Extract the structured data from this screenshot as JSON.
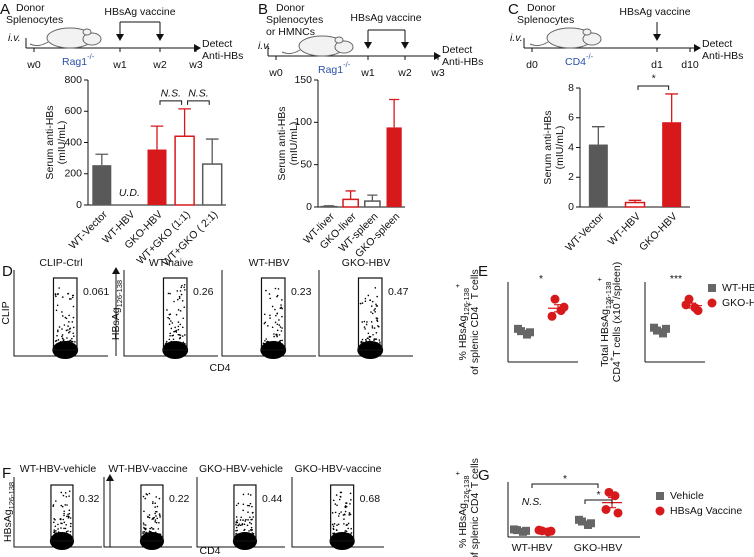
{
  "panel_labels": [
    "A",
    "B",
    "C",
    "D",
    "E",
    "F",
    "G"
  ],
  "schematics": [
    {
      "donor": [
        "Donor",
        "Splenocytes"
      ],
      "route": "i.v.",
      "host": [
        {
          "t": "Rag1"
        },
        {
          "sup": "-/-"
        }
      ],
      "vaccine": "HBsAg vaccine",
      "timepoints": [
        "w0",
        "w1",
        "w2",
        "w3"
      ],
      "readout": [
        "Detect",
        "Anti-HBs"
      ]
    },
    {
      "donor": [
        "Donor",
        "Splenocytes",
        "or HMNCs"
      ],
      "route": "i.v.",
      "host": [
        {
          "t": "Rag1"
        },
        {
          "sup": "-/-"
        }
      ],
      "vaccine": "HBsAg vaccine",
      "timepoints": [
        "w0",
        "w1",
        "w2",
        "w3"
      ],
      "readout": [
        "Detect",
        "Anti-HBs"
      ]
    },
    {
      "donor": [
        "Donor",
        "Splenocytes"
      ],
      "route": "i.v.",
      "host": [
        {
          "t": "CD4"
        },
        {
          "sup": "-/-"
        }
      ],
      "vaccine": "HBsAg vaccine",
      "timepoints": [
        "d0",
        "d1",
        "d10"
      ],
      "readout": [
        "Detect",
        "Anti-HBs"
      ]
    }
  ],
  "chart_data": [
    {
      "type": "bar",
      "y_title": [
        [
          {
            "t": "Serum anti-HBs"
          }
        ],
        [
          {
            "t": "(mIU/mL)"
          }
        ]
      ],
      "categories": [
        "WT-Vector",
        "WT-HBV",
        "GKO-HBV",
        "WT+GKO (1:1)",
        "WT+GKO ( 2:1)"
      ],
      "values": [
        255,
        null,
        355,
        440,
        262
      ],
      "errors": [
        70,
        null,
        150,
        175,
        160
      ],
      "value_labels": [
        null,
        "U.D.",
        null,
        null,
        null
      ],
      "colors": [
        "#595959",
        "#595959",
        "#d7191c",
        "#d7191c",
        "#595959"
      ],
      "filled": [
        true,
        true,
        true,
        false,
        false
      ],
      "annotations": [
        "N.S.",
        "N.S."
      ],
      "ylim": [
        0,
        800
      ],
      "yticks": [
        0,
        200,
        400,
        600,
        800
      ]
    },
    {
      "type": "bar",
      "y_title": [
        [
          {
            "t": "Serum anti-HBs"
          }
        ],
        [
          {
            "t": "(mIU/mL)"
          }
        ]
      ],
      "categories": [
        "WT-liver",
        "GKO-liver",
        "WT-spleen",
        "GKO-spleen"
      ],
      "values": [
        0.5,
        9,
        7,
        94
      ],
      "errors": [
        1,
        10,
        7,
        33
      ],
      "colors": [
        "#595959",
        "#d7191c",
        "#595959",
        "#d7191c"
      ],
      "filled": [
        false,
        false,
        false,
        true
      ],
      "ylim": [
        0,
        150
      ],
      "yticks": [
        0,
        50,
        100,
        150
      ]
    },
    {
      "type": "bar",
      "y_title": [
        [
          {
            "t": "Serum anti-HBs"
          }
        ],
        [
          {
            "t": "(mIU/mL)"
          }
        ]
      ],
      "categories": [
        "WT-Vector",
        "WT-HBV",
        "GKO-HBV"
      ],
      "values": [
        4.2,
        0.3,
        5.7
      ],
      "errors": [
        1.2,
        0.15,
        1.9
      ],
      "colors": [
        "#595959",
        "#d7191c",
        "#d7191c"
      ],
      "filled": [
        true,
        false,
        true
      ],
      "annotations": [
        "*"
      ],
      "ylim": [
        0,
        8
      ],
      "yticks": [
        0,
        2,
        4,
        6,
        8
      ]
    },
    {
      "type": "dot",
      "y_title": [
        [
          {
            "t": "% HBsAg"
          },
          {
            "sub": "126-138"
          },
          {
            "sup": "+"
          }
        ],
        [
          {
            "t": "of splenic CD4"
          },
          {
            "sup": "+"
          },
          {
            "t": " T cells"
          }
        ]
      ],
      "annotations": [
        "*"
      ],
      "ylim": [
        0,
        0.7
      ],
      "series": [
        {
          "name": "WT-HBV",
          "color": "#666666",
          "marker": "square",
          "values": [
            [
              0.27,
              0.24,
              0.29,
              0.26
            ]
          ]
        },
        {
          "name": "GKO-HBV",
          "color": "#d7191c",
          "marker": "circle",
          "values": [
            [
              0.55,
              0.45,
              0.4,
              0.48
            ]
          ]
        }
      ]
    },
    {
      "type": "dot",
      "y_title": [
        [
          {
            "t": "Total HBsAg"
          },
          {
            "sub": "126-138"
          },
          {
            "sup": "+"
          }
        ],
        [
          {
            "t": "CD4"
          },
          {
            "sup": "+"
          },
          {
            "t": "T cells (x10"
          },
          {
            "sup": "4"
          },
          {
            "t": "/spleen)"
          }
        ]
      ],
      "annotations": [
        "***"
      ],
      "ylim": [
        0,
        14
      ],
      "series": [
        {
          "color": "#666666",
          "marker": "square",
          "values": [
            [
              5.5,
              5.0,
              6.0,
              5.8
            ]
          ]
        },
        {
          "color": "#d7191c",
          "marker": "circle",
          "values": [
            [
              11,
              9.5,
              10,
              9
            ]
          ]
        }
      ]
    },
    {
      "type": "dot",
      "y_title": [
        [
          {
            "t": "% HBsAg"
          },
          {
            "sub": "126-138"
          },
          {
            "sup": "+"
          }
        ],
        [
          {
            "t": "of splenic CD4"
          },
          {
            "sup": "+"
          },
          {
            "t": "T cells"
          }
        ]
      ],
      "categories": [
        "WT-HBV",
        "GKO-HBV"
      ],
      "annotations": [
        "N.S.",
        "*",
        "*"
      ],
      "ylim": [
        0,
        1.6
      ],
      "series": [
        {
          "name": "Vehicle",
          "color": "#666666",
          "marker": "square",
          "values": [
            [
              0.2,
              0.15,
              0.22,
              0.18
            ],
            [
              0.45,
              0.35,
              0.5,
              0.4
            ]
          ]
        },
        {
          "name": "HBsAg Vaccine",
          "color": "#d7191c",
          "marker": "circle",
          "values": [
            [
              0.18,
              0.15,
              0.2,
              0.17
            ],
            [
              1.3,
              1.2,
              0.8,
              0.7
            ]
          ]
        }
      ]
    }
  ],
  "flow": [
    {
      "y_labels": [
        [
          {
            "t": "CLIP"
          }
        ],
        [
          {
            "t": "HBsAg"
          },
          {
            "sub": "126-138"
          }
        ]
      ],
      "x_label": "CD4",
      "plots": [
        {
          "title": "CLIP-Ctrl",
          "percent": 0.061
        },
        {
          "title": "WT-naive",
          "percent": 0.26
        },
        {
          "title": "WT-HBV",
          "percent": 0.23
        },
        {
          "title": "GKO-HBV",
          "percent": 0.47
        }
      ]
    },
    {
      "y_labels": [
        [
          {
            "t": "HBsAg"
          },
          {
            "sub": "126-138"
          }
        ]
      ],
      "x_label": "CD4",
      "plots": [
        {
          "title": "WT-HBV-vehicle",
          "percent": 0.32
        },
        {
          "title": "WT-HBV-vaccine",
          "percent": 0.22
        },
        {
          "title": "GKO-HBV-vehicle",
          "percent": 0.44
        },
        {
          "title": "GKO-HBV-vaccine",
          "percent": 0.68
        }
      ]
    }
  ]
}
